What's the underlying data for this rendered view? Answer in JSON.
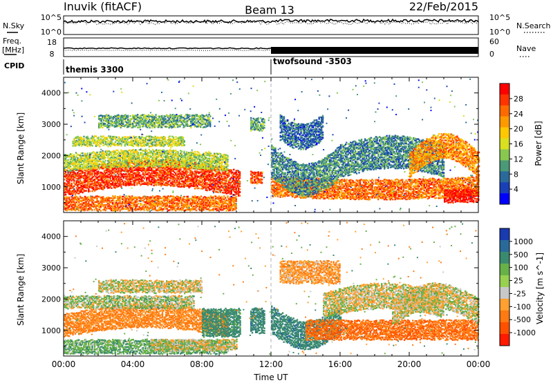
{
  "header": {
    "title": "Inuvik (fitACF)",
    "beam": "Beam 13",
    "date": "22/Feb/2015"
  },
  "noise_panel": {
    "left_label": "N.Sky",
    "left_ticks": [
      "10^5",
      "10^0"
    ],
    "right_label": "N.Search",
    "right_ticks": [
      "10^5",
      "10^0"
    ]
  },
  "freq_panel": {
    "label_line1": "Freq.",
    "label_line2": "[MHz]",
    "left_ticks": [
      "18",
      "8"
    ],
    "right_label": "Nave",
    "right_ticks": [
      "60",
      "0"
    ]
  },
  "cpid_panel": {
    "label": "CPID",
    "segments": [
      {
        "name": "themis 3300",
        "start": "00:00"
      },
      {
        "name": "twofsound -3503",
        "start": "12:00"
      }
    ]
  },
  "chart_data": [
    {
      "type": "heatmap",
      "name": "Power",
      "ylabel": "Slant Range [km]",
      "yticks": [
        "4000",
        "3000",
        "2000",
        "1000"
      ],
      "ylim": [
        180,
        4500
      ],
      "xlabel": "Time UT",
      "xticks": [
        "00:00",
        "04:00",
        "08:00",
        "12:00",
        "16:00",
        "20:00",
        "00:00"
      ],
      "xlim_hours": [
        0,
        24
      ],
      "colorbar_label": "Power [dB]",
      "colorbar_ticks": [
        "28",
        "24",
        "20",
        "16",
        "12",
        "8",
        "4"
      ],
      "colorbar_colors": [
        "#ff0000",
        "#ff3300",
        "#ff6a00",
        "#ff9900",
        "#ffc800",
        "#d8e020",
        "#88c850",
        "#4a9a78",
        "#2a6a9a",
        "#1a40b8",
        "#0000ff"
      ],
      "bands": [
        {
          "t0": 0.0,
          "t1": 10.2,
          "r0": 700,
          "r1": 1500,
          "level": 27,
          "slope": 350
        },
        {
          "t0": 0.0,
          "t1": 10.0,
          "r0": 250,
          "r1": 700,
          "level": 24,
          "slope": 0
        },
        {
          "t0": 0.0,
          "t1": 9.5,
          "r0": 1500,
          "r1": 2000,
          "level": 14,
          "slope": 150
        },
        {
          "t0": 0.5,
          "t1": 7.0,
          "r0": 2300,
          "r1": 2600,
          "level": 14,
          "slope": 0
        },
        {
          "t0": 2.0,
          "t1": 8.5,
          "r0": 2900,
          "r1": 3300,
          "level": 10,
          "slope": 0
        },
        {
          "t0": 10.8,
          "t1": 11.5,
          "r0": 1100,
          "r1": 1500,
          "level": 26,
          "slope": 0
        },
        {
          "t0": 10.8,
          "t1": 11.6,
          "r0": 2800,
          "r1": 3200,
          "level": 10,
          "slope": 0
        },
        {
          "t0": 12.0,
          "t1": 24.0,
          "r0": 700,
          "r1": 1300,
          "level": 24,
          "slope": -100
        },
        {
          "t0": 12.0,
          "t1": 16.0,
          "r0": 1300,
          "r1": 2300,
          "level": 8,
          "slope": -600
        },
        {
          "t0": 16.0,
          "t1": 22.0,
          "r0": 1300,
          "r1": 2300,
          "level": 8,
          "slope": 300
        },
        {
          "t0": 12.5,
          "t1": 15.0,
          "r0": 2500,
          "r1": 3300,
          "level": 6,
          "slope": -300
        },
        {
          "t0": 20.0,
          "t1": 24.0,
          "r0": 1300,
          "r1": 2100,
          "level": 22,
          "slope": 600
        },
        {
          "t0": 22.0,
          "t1": 24.0,
          "r0": 500,
          "r1": 900,
          "level": 29,
          "slope": 0
        }
      ]
    },
    {
      "type": "heatmap",
      "name": "Velocity",
      "ylabel": "Slant Range [km]",
      "yticks": [
        "4000",
        "3000",
        "2000",
        "1000"
      ],
      "ylim": [
        180,
        4500
      ],
      "xlabel": "Time UT",
      "xticks": [
        "00:00",
        "04:00",
        "08:00",
        "12:00",
        "16:00",
        "20:00",
        "00:00"
      ],
      "xlim_hours": [
        0,
        24
      ],
      "colorbar_label": "Velocity [m s^-1]",
      "colorbar_ticks": [
        "1000",
        "500",
        "100",
        "25",
        "-25",
        "-100",
        "-500",
        "-1000"
      ],
      "colorbar_colors": [
        "#1a3ab0",
        "#2a6a9a",
        "#3a8a70",
        "#68b048",
        "#98d050",
        "#c8c8c8",
        "#ffa030",
        "#ff7a10",
        "#ff5000",
        "#ff1a00"
      ],
      "bands": [
        {
          "t0": 0.0,
          "t1": 9.5,
          "r0": 800,
          "r1": 1500,
          "level": -250,
          "slope": 300
        },
        {
          "t0": 0.0,
          "t1": 9.5,
          "r0": 250,
          "r1": 700,
          "level": 150,
          "slope": 0
        },
        {
          "t0": 5.0,
          "t1": 10.0,
          "r0": 350,
          "r1": 700,
          "level": 0,
          "slope": 0
        },
        {
          "t0": 0.0,
          "t1": 7.5,
          "r0": 1700,
          "r1": 2100,
          "level": 60,
          "slope": 0
        },
        {
          "t0": 8.0,
          "t1": 10.2,
          "r0": 800,
          "r1": 1700,
          "level": 300,
          "slope": 0
        },
        {
          "t0": 2.0,
          "t1": 8.0,
          "r0": 2200,
          "r1": 2600,
          "level": 0,
          "slope": 0
        },
        {
          "t0": 10.8,
          "t1": 11.6,
          "r0": 900,
          "r1": 1700,
          "level": 400,
          "slope": 0
        },
        {
          "t0": 12.0,
          "t1": 16.0,
          "r0": 900,
          "r1": 1800,
          "level": 400,
          "slope": -500
        },
        {
          "t0": 14.0,
          "t1": 24.0,
          "r0": 700,
          "r1": 1300,
          "level": -400,
          "slope": 0
        },
        {
          "t0": 15.0,
          "t1": 22.0,
          "r0": 1400,
          "r1": 2200,
          "level": 0,
          "slope": 300
        },
        {
          "t0": 12.5,
          "t1": 16.0,
          "r0": 2500,
          "r1": 3200,
          "level": -150,
          "slope": 0
        },
        {
          "t0": 19.0,
          "t1": 24.0,
          "r0": 1200,
          "r1": 2000,
          "level": 0,
          "slope": 500
        }
      ]
    }
  ]
}
